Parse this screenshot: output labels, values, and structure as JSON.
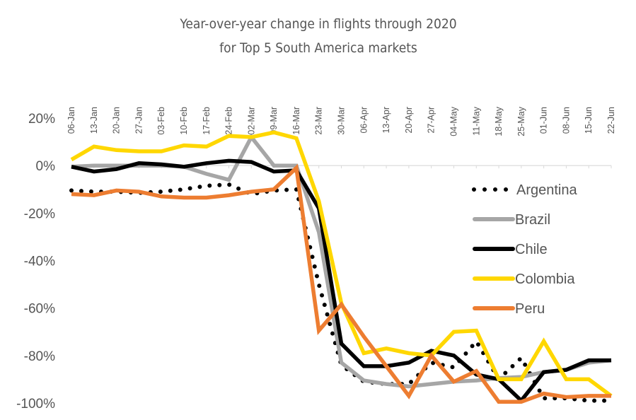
{
  "chart_data": {
    "type": "line",
    "title": [
      "Year-over-year change in flights through 2020",
      "for Top 5 South America markets"
    ],
    "xlabel": "",
    "ylabel": "",
    "categories": [
      "06-Jan",
      "13-Jan",
      "20-Jan",
      "27-Jan",
      "03-Feb",
      "10-Feb",
      "17-Feb",
      "24-Feb",
      "02-Mar",
      "09-Mar",
      "16-Mar",
      "23-Mar",
      "30-Mar",
      "06-Apr",
      "13-Apr",
      "20-Apr",
      "27-Apr",
      "04-May",
      "11-May",
      "18-May",
      "25-May",
      "01-Jun",
      "08-Jun",
      "15-Jun",
      "22-Jun"
    ],
    "ylim": [
      -100,
      20
    ],
    "yticks": [
      20,
      0,
      -20,
      -40,
      -60,
      -80,
      -100
    ],
    "ytick_labels": [
      "20%",
      "0%",
      "-20%",
      "-40%",
      "-60%",
      "-80%",
      "-100%"
    ],
    "grid": false,
    "legend_position": "right",
    "series": [
      {
        "name": "Argentina",
        "color": "#000000",
        "style": "dotted",
        "values": [
          -10.5,
          -11,
          -11,
          -11.5,
          -11,
          -10,
          -8.5,
          -8,
          -12,
          -10.5,
          -10,
          -50,
          -84,
          -91,
          -92,
          -92,
          -83,
          -85,
          -74,
          -90,
          -81,
          -98,
          -98,
          -99,
          -99
        ]
      },
      {
        "name": "Brazil",
        "color": "#A6A6A6",
        "style": "solid",
        "values": [
          -0.5,
          0,
          0,
          0,
          0,
          -0.5,
          -3.5,
          -6,
          12,
          0,
          0,
          -28,
          -83,
          -90.5,
          -92,
          -93,
          -92,
          -91,
          -90.5,
          -89.5,
          -89,
          -87,
          -86,
          -83,
          -82
        ]
      },
      {
        "name": "Chile",
        "color": "#000000",
        "style": "solid",
        "values": [
          -0.5,
          -2.5,
          -1.5,
          1,
          0.5,
          -0.5,
          1,
          2,
          1.5,
          -2.5,
          -2,
          -18,
          -75,
          -84.5,
          -84.5,
          -83,
          -78,
          -80,
          -88,
          -90,
          -99,
          -87,
          -86,
          -82,
          -82
        ]
      },
      {
        "name": "Colombia",
        "color": "#FFD700",
        "style": "solid",
        "values": [
          2.5,
          8,
          6.5,
          6,
          6,
          8.5,
          8,
          12.5,
          12,
          14,
          11.5,
          -15,
          -58,
          -79,
          -77,
          -79,
          -80,
          -70,
          -69.5,
          -90,
          -90,
          -74,
          -90,
          -90,
          -97
        ]
      },
      {
        "name": "Peru",
        "color": "#ED7D31",
        "style": "solid",
        "values": [
          -12,
          -12.5,
          -10.5,
          -11,
          -13,
          -13.5,
          -13.5,
          -12.5,
          -11,
          -10,
          -1,
          -69.5,
          -58.5,
          -72,
          -84.5,
          -97,
          -80,
          -91,
          -86.5,
          -99.5,
          -99.5,
          -96,
          -97.5,
          -97,
          -97
        ]
      }
    ]
  }
}
